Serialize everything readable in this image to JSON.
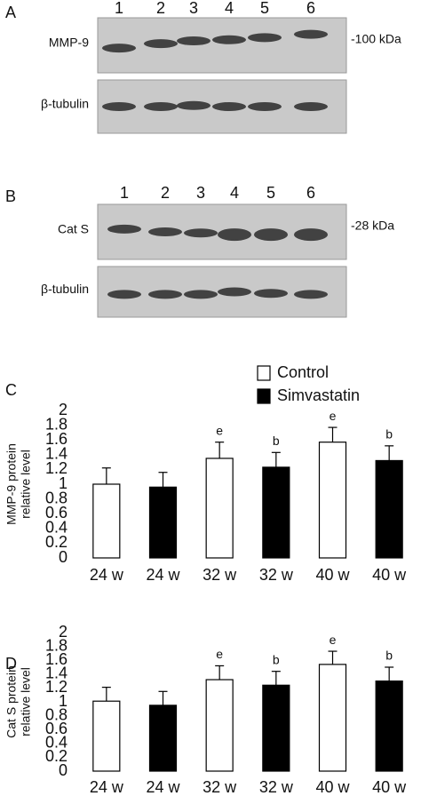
{
  "panels": [
    {
      "label": "A",
      "lanes": [
        "1",
        "2",
        "3",
        "4",
        "5",
        "6"
      ],
      "rows": [
        {
          "name": "MMP-9",
          "marker": "-100 kDa"
        },
        {
          "name": "β-tubulin"
        }
      ]
    },
    {
      "label": "B",
      "lanes": [
        "1",
        "2",
        "3",
        "4",
        "5",
        "6"
      ],
      "rows": [
        {
          "name": "Cat S",
          "marker": "-28 kDa"
        },
        {
          "name": "β-tubulin"
        }
      ]
    }
  ],
  "chart_data": [
    {
      "type": "bar",
      "panel": "C",
      "ylabel": [
        "MMP-9 protein",
        "relative level"
      ],
      "categories": [
        "24 w",
        "24 w",
        "32 w",
        "32 w",
        "40 w",
        "40 w"
      ],
      "series": [
        {
          "name": "Control",
          "color": "#ffffff",
          "values": [
            1.0,
            null,
            1.35,
            null,
            1.57,
            null
          ],
          "errors": [
            0.22,
            null,
            0.22,
            null,
            0.2,
            null
          ]
        },
        {
          "name": "Simvastatin",
          "color": "#000000",
          "values": [
            null,
            0.96,
            null,
            1.23,
            null,
            1.32
          ],
          "errors": [
            null,
            0.2,
            null,
            0.2,
            null,
            0.2
          ]
        }
      ],
      "annotations": [
        null,
        null,
        "e",
        "b",
        "e",
        "b"
      ],
      "ylim": [
        0,
        2
      ],
      "yticks": [
        0,
        0.2,
        0.4,
        0.6,
        0.8,
        1,
        1.2,
        1.4,
        1.6,
        1.8,
        2
      ],
      "legend": "top-right"
    },
    {
      "type": "bar",
      "panel": "D",
      "ylabel": [
        "Cat S protein",
        "relative level"
      ],
      "categories": [
        "24 w",
        "24 w",
        "32 w",
        "32 w",
        "40 w",
        "40 w"
      ],
      "series": [
        {
          "name": "Control",
          "color": "#ffffff",
          "values": [
            1.01,
            null,
            1.32,
            null,
            1.54,
            null
          ],
          "errors": [
            0.2,
            null,
            0.2,
            null,
            0.19,
            null
          ]
        },
        {
          "name": "Simvastatin",
          "color": "#000000",
          "values": [
            null,
            0.95,
            null,
            1.24,
            null,
            1.3
          ],
          "errors": [
            null,
            0.2,
            null,
            0.2,
            null,
            0.2
          ]
        }
      ],
      "annotations": [
        null,
        null,
        "e",
        "b",
        "e",
        "b"
      ],
      "ylim": [
        0,
        2
      ],
      "yticks": [
        0,
        0.2,
        0.4,
        0.6,
        0.8,
        1,
        1.2,
        1.4,
        1.6,
        1.8,
        2
      ]
    }
  ]
}
